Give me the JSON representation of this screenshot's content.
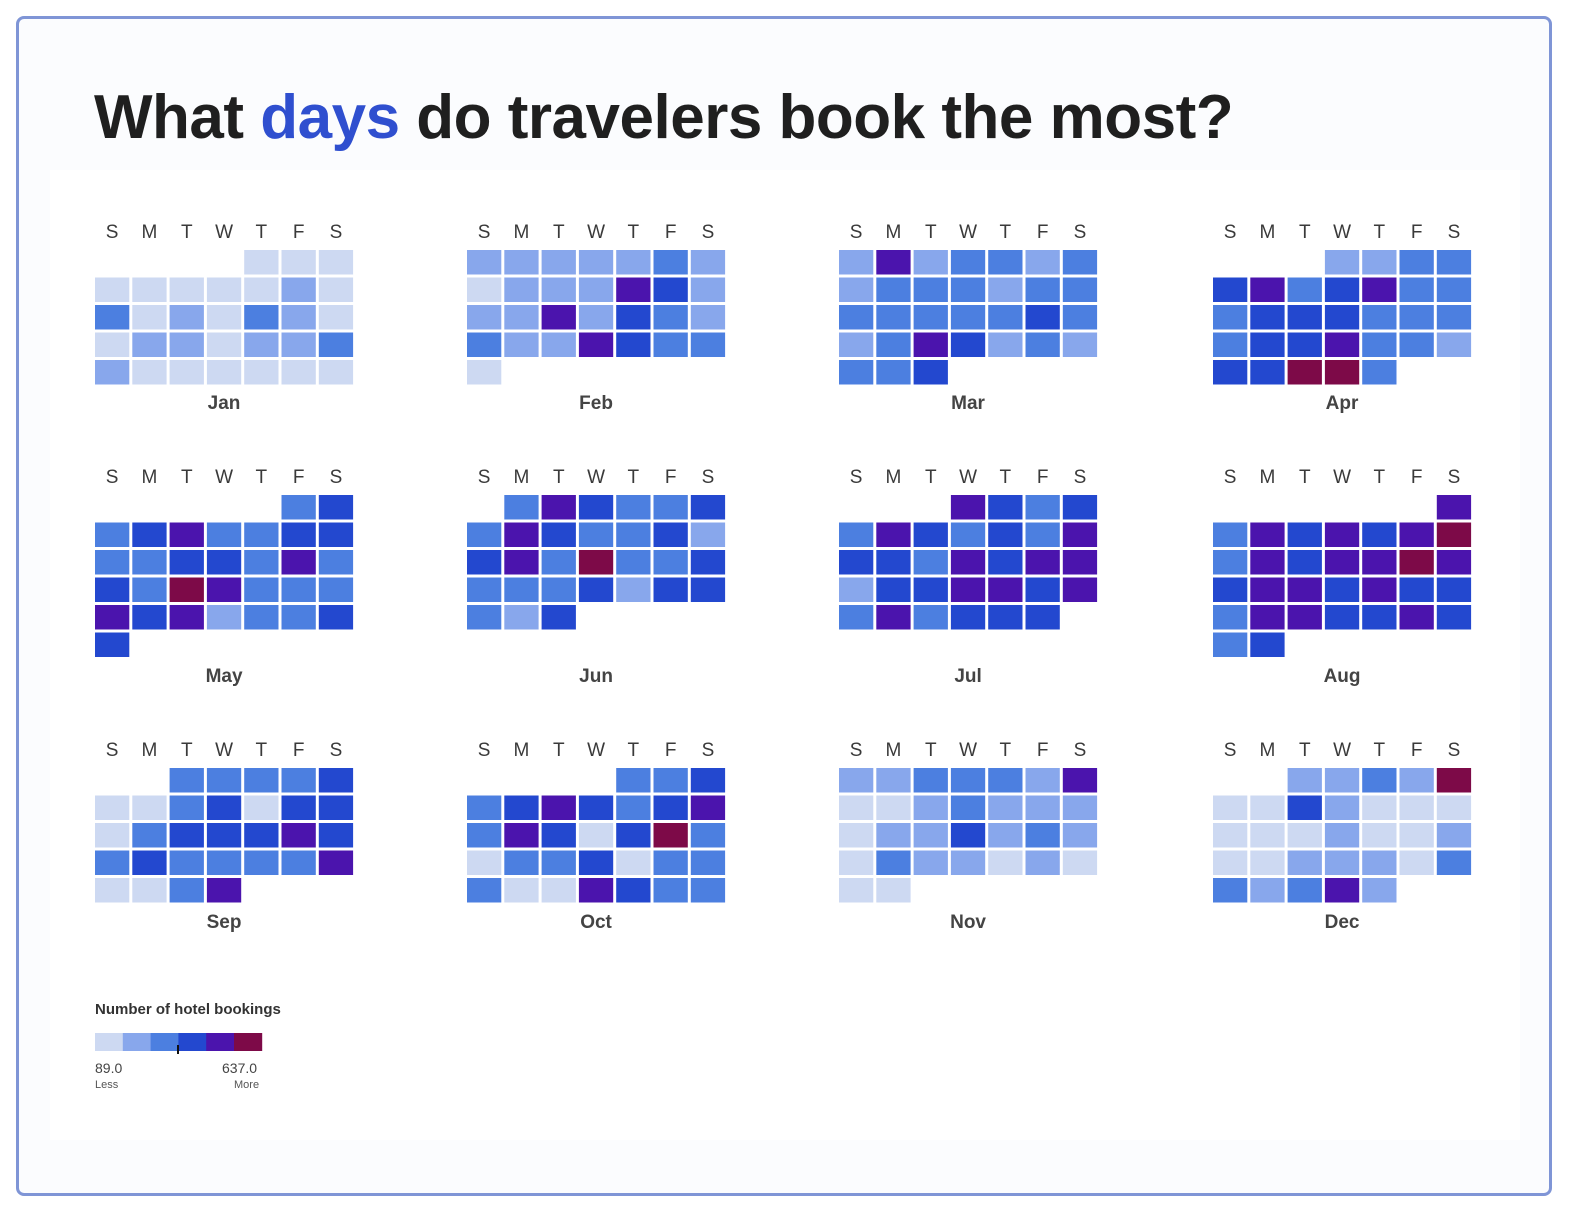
{
  "title": {
    "before": "What ",
    "highlight": "days",
    "after": " do travelers book the most?"
  },
  "colors": {
    "accent": "#2f4fcf",
    "scale": [
      "#cdd9f2",
      "#88a7ec",
      "#4c7fe0",
      "#2348cf",
      "#4b14ad",
      "#7d0a48"
    ]
  },
  "chart_data": {
    "type": "heatmap",
    "title": "What days do travelers book the most?",
    "weekday_labels": [
      "S",
      "M",
      "T",
      "W",
      "T",
      "F",
      "S"
    ],
    "level_count": 6,
    "months": [
      {
        "name": "Jan",
        "start": 4,
        "days": [
          0,
          0,
          0,
          0,
          0,
          0,
          0,
          0,
          1,
          0,
          2,
          0,
          1,
          0,
          2,
          1,
          0,
          0,
          1,
          1,
          0,
          1,
          1,
          2,
          1,
          0,
          0,
          0,
          0,
          0,
          0
        ]
      },
      {
        "name": "Feb",
        "start": 0,
        "days": [
          1,
          1,
          1,
          1,
          1,
          2,
          1,
          0,
          1,
          1,
          1,
          4,
          3,
          1,
          1,
          1,
          4,
          1,
          3,
          2,
          1,
          2,
          1,
          1,
          4,
          3,
          2,
          2,
          0
        ]
      },
      {
        "name": "Mar",
        "start": 0,
        "days": [
          1,
          4,
          1,
          2,
          2,
          1,
          2,
          1,
          2,
          2,
          2,
          1,
          2,
          2,
          2,
          2,
          2,
          2,
          2,
          3,
          2,
          1,
          2,
          4,
          3,
          1,
          2,
          1,
          2,
          2,
          3
        ]
      },
      {
        "name": "Apr",
        "start": 3,
        "days": [
          1,
          1,
          2,
          2,
          3,
          4,
          2,
          3,
          4,
          2,
          2,
          2,
          3,
          3,
          3,
          2,
          2,
          2,
          2,
          3,
          3,
          4,
          2,
          2,
          1,
          3,
          3,
          5,
          5,
          2
        ]
      },
      {
        "name": "May",
        "start": 5,
        "days": [
          2,
          3,
          2,
          3,
          4,
          2,
          2,
          3,
          3,
          2,
          2,
          3,
          3,
          2,
          4,
          2,
          3,
          2,
          5,
          4,
          2,
          2,
          2,
          4,
          3,
          4,
          1,
          2,
          2,
          3,
          3
        ]
      },
      {
        "name": "Jun",
        "start": 1,
        "days": [
          2,
          4,
          3,
          2,
          2,
          3,
          2,
          4,
          3,
          2,
          2,
          3,
          1,
          3,
          4,
          2,
          5,
          2,
          2,
          3,
          2,
          2,
          2,
          3,
          1,
          3,
          3,
          2,
          1,
          3
        ]
      },
      {
        "name": "Jul",
        "start": 3,
        "days": [
          4,
          3,
          2,
          3,
          2,
          4,
          3,
          2,
          3,
          2,
          4,
          3,
          3,
          2,
          4,
          3,
          4,
          4,
          1,
          3,
          3,
          4,
          4,
          3,
          4,
          2,
          4,
          2,
          3,
          3,
          3
        ]
      },
      {
        "name": "Aug",
        "start": 6,
        "days": [
          4,
          2,
          4,
          3,
          4,
          3,
          4,
          5,
          2,
          4,
          3,
          4,
          4,
          5,
          4,
          3,
          4,
          4,
          3,
          4,
          3,
          3,
          2,
          4,
          4,
          3,
          3,
          4,
          3,
          2,
          3
        ]
      },
      {
        "name": "Sep",
        "start": 2,
        "days": [
          2,
          2,
          2,
          2,
          3,
          0,
          0,
          2,
          3,
          0,
          3,
          3,
          0,
          2,
          3,
          3,
          3,
          4,
          3,
          2,
          3,
          2,
          2,
          2,
          2,
          4,
          0,
          0,
          2,
          4
        ]
      },
      {
        "name": "Oct",
        "start": 4,
        "days": [
          2,
          2,
          3,
          2,
          3,
          4,
          3,
          2,
          3,
          4,
          2,
          4,
          3,
          0,
          3,
          5,
          2,
          0,
          2,
          2,
          3,
          0,
          2,
          2,
          2,
          0,
          0,
          4,
          3,
          2,
          2
        ]
      },
      {
        "name": "Nov",
        "start": 0,
        "days": [
          1,
          1,
          2,
          2,
          2,
          1,
          4,
          0,
          0,
          1,
          2,
          1,
          1,
          1,
          0,
          1,
          1,
          3,
          1,
          2,
          1,
          0,
          2,
          1,
          1,
          0,
          1,
          0,
          0,
          0
        ]
      },
      {
        "name": "Dec",
        "start": 2,
        "days": [
          1,
          1,
          2,
          1,
          5,
          0,
          0,
          3,
          1,
          0,
          0,
          0,
          0,
          0,
          0,
          1,
          0,
          0,
          1,
          0,
          0,
          1,
          1,
          1,
          0,
          2,
          2,
          1,
          2,
          4,
          1
        ]
      }
    ],
    "legend": {
      "title": "Number of hotel bookings",
      "min": 89.0,
      "max": 637.0,
      "min_label": "89.0",
      "max_label": "637.0",
      "low_label": "Less",
      "high_label": "More"
    }
  }
}
